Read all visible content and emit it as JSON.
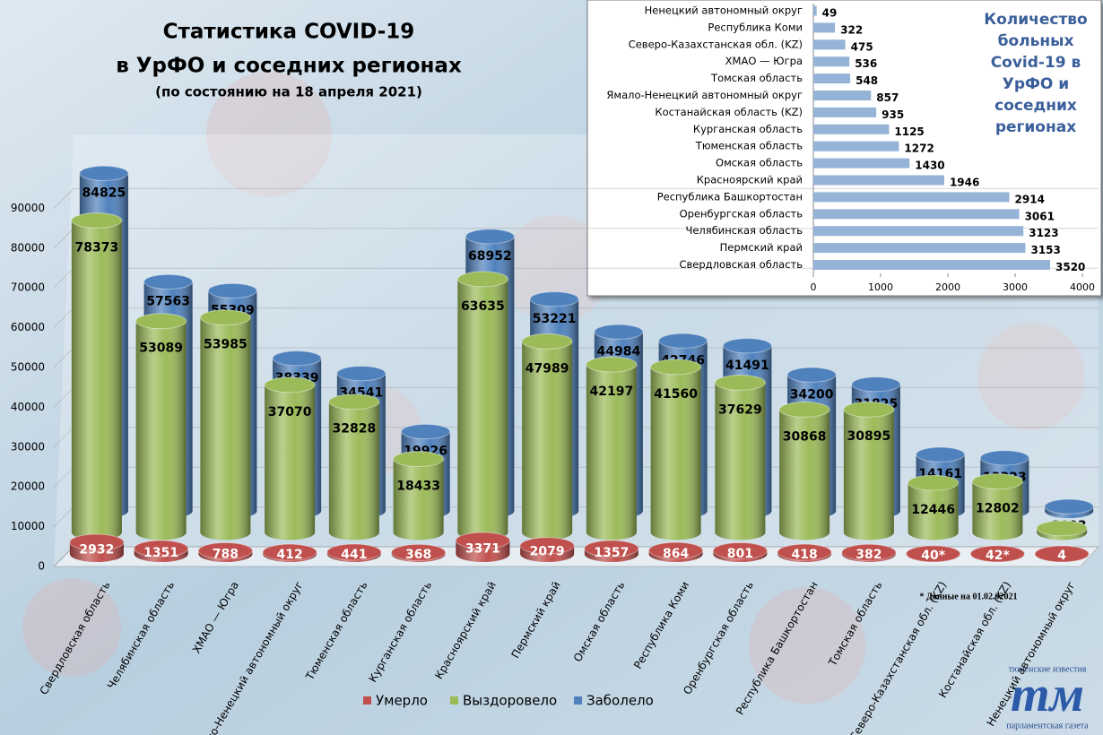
{
  "chart_data": [
    {
      "type": "bar3d",
      "title": "Статистика COVID-19",
      "subtitle": "в УрФО и соседних регионах",
      "note": "(по состоянию на 18 апреля 2021)",
      "footnote": "* Данные на 01.02.02021",
      "categories": [
        "Свердловская область",
        "Челябинская область",
        "ХМАО — Югра",
        "Ямало-Ненецкий автономный округ",
        "Тюменская область",
        "Курганская область",
        "Красноярский край",
        "Пермский край",
        "Омская область",
        "Республика Коми",
        "Оренбургская область",
        "Республика Башкортостан",
        "Томская область",
        "Северо-Казахстанская обл. (KZ)",
        "Костанайская обл. (KZ)",
        "Ненецкий автономный округ"
      ],
      "series": [
        {
          "name": "Умерло",
          "color": "#c0504d",
          "values": [
            2932,
            1351,
            788,
            412,
            441,
            368,
            3371,
            2079,
            1357,
            864,
            801,
            418,
            382,
            40,
            42,
            4
          ],
          "value_labels": [
            "2932",
            "1351",
            "788",
            "412",
            "441",
            "368",
            "3371",
            "2079",
            "1357",
            "864",
            "801",
            "418",
            "382",
            "40*",
            "42*",
            "4"
          ]
        },
        {
          "name": "Выздоровело",
          "color": "#9bbb59",
          "values": [
            78373,
            53089,
            53985,
            37070,
            32828,
            18433,
            63635,
            47989,
            42197,
            41560,
            37629,
            30868,
            30895,
            12446,
            12802,
            1040
          ]
        },
        {
          "name": "Заболело",
          "color": "#4f81bd",
          "values": [
            84825,
            57563,
            55309,
            38339,
            34541,
            19926,
            68952,
            53221,
            44984,
            42746,
            41491,
            34200,
            31825,
            14161,
            13323,
            1093
          ]
        }
      ],
      "ylim": [
        0,
        100000
      ],
      "yticks": [
        0,
        10000,
        20000,
        30000,
        40000,
        50000,
        60000,
        70000,
        80000,
        90000
      ],
      "grid": true,
      "legend": "bottom"
    },
    {
      "type": "barh",
      "title": "Количество больных Covid-19 в УрФО и соседних регионах",
      "categories": [
        "Ненецкий автономный округ",
        "Республика Коми",
        "Северо-Казахстанская обл. (KZ)",
        "ХМАО — Югра",
        "Томская область",
        "Ямало-Ненецкий автономный округ",
        "Костанайская область (KZ)",
        "Курганская область",
        "Тюменская область",
        "Омская область",
        "Красноярский край",
        "Республика Башкортостан",
        "Оренбургская область",
        "Челябинская область",
        "Пермский край",
        "Свердловская область"
      ],
      "values": [
        49,
        322,
        475,
        536,
        548,
        857,
        935,
        1125,
        1272,
        1430,
        1946,
        2914,
        3061,
        3123,
        3153,
        3520
      ],
      "color": "#95b3d7",
      "xlim": [
        0,
        4000
      ],
      "xticks": [
        0,
        1000,
        2000,
        3000,
        4000
      ]
    }
  ],
  "logo": {
    "top": "тюменские известия",
    "mark": "тм",
    "bottom": "парламентская газета"
  }
}
